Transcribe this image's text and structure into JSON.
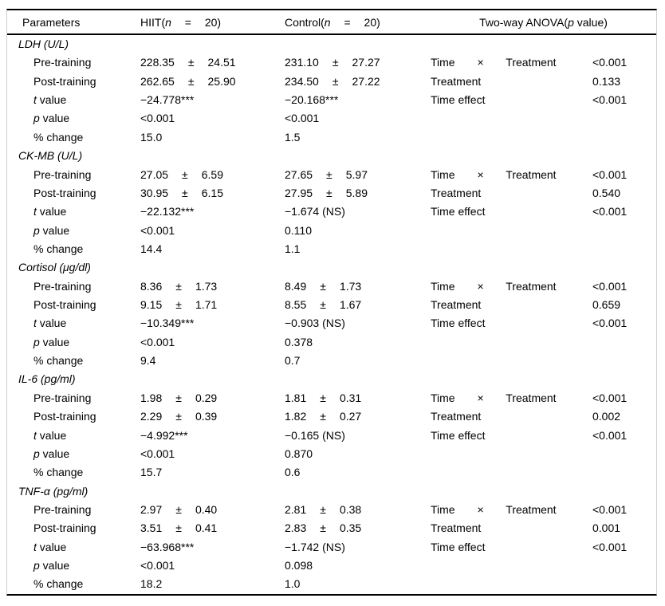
{
  "header": {
    "parameters": "Parameters",
    "hiit_prefix": "HIIT(",
    "hiit_n": "n",
    "hiit_rest": " = 20)",
    "control_prefix": "Control(",
    "control_n": "n",
    "control_rest": " = 20)",
    "anova_prefix": "Two-way ANOVA(",
    "anova_p": "p",
    "anova_rest": " value)"
  },
  "sections": [
    {
      "title": "LDH (U/L)",
      "rows": [
        {
          "label_pre": "Pre-training",
          "label_it": "",
          "label_rest": "",
          "hiit_mean": "228.35",
          "hiit_pm": "±",
          "hiit_sd": "24.51",
          "ctrl_mean": "231.10",
          "ctrl_pm": "±",
          "ctrl_sd": "27.27",
          "anova_label": "Time × Treatment",
          "anova_value": "<0.001"
        },
        {
          "label_pre": "Post-training",
          "label_it": "",
          "label_rest": "",
          "hiit_mean": "262.65",
          "hiit_pm": "±",
          "hiit_sd": "25.90",
          "ctrl_mean": "234.50",
          "ctrl_pm": "±",
          "ctrl_sd": "27.22",
          "anova_label": "Treatment",
          "anova_value": "0.133"
        },
        {
          "label_pre": "",
          "label_it": "t",
          "label_rest": " value",
          "hiit_mean": "−24.778***",
          "hiit_pm": "",
          "hiit_sd": "",
          "ctrl_mean": "−20.168***",
          "ctrl_pm": "",
          "ctrl_sd": "",
          "anova_label": "Time effect",
          "anova_value": "<0.001"
        },
        {
          "label_pre": "",
          "label_it": "p",
          "label_rest": " value",
          "hiit_mean": "<0.001",
          "hiit_pm": "",
          "hiit_sd": "",
          "ctrl_mean": "<0.001",
          "ctrl_pm": "",
          "ctrl_sd": "",
          "anova_label": "",
          "anova_value": ""
        },
        {
          "label_pre": "% change",
          "label_it": "",
          "label_rest": "",
          "hiit_mean": "15.0",
          "hiit_pm": "",
          "hiit_sd": "",
          "ctrl_mean": "1.5",
          "ctrl_pm": "",
          "ctrl_sd": "",
          "anova_label": "",
          "anova_value": ""
        }
      ]
    },
    {
      "title": "CK-MB (U/L)",
      "rows": [
        {
          "label_pre": "Pre-training",
          "label_it": "",
          "label_rest": "",
          "hiit_mean": "27.05",
          "hiit_pm": "±",
          "hiit_sd": "6.59",
          "ctrl_mean": "27.65",
          "ctrl_pm": "±",
          "ctrl_sd": "5.97",
          "anova_label": "Time × Treatment",
          "anova_value": "<0.001"
        },
        {
          "label_pre": "Post-training",
          "label_it": "",
          "label_rest": "",
          "hiit_mean": "30.95",
          "hiit_pm": "±",
          "hiit_sd": "6.15",
          "ctrl_mean": "27.95",
          "ctrl_pm": "±",
          "ctrl_sd": "5.89",
          "anova_label": "Treatment",
          "anova_value": "0.540"
        },
        {
          "label_pre": "",
          "label_it": "t",
          "label_rest": " value",
          "hiit_mean": "−22.132***",
          "hiit_pm": "",
          "hiit_sd": "",
          "ctrl_mean": "−1.674 (NS)",
          "ctrl_pm": "",
          "ctrl_sd": "",
          "anova_label": "Time effect",
          "anova_value": "<0.001"
        },
        {
          "label_pre": "",
          "label_it": "p",
          "label_rest": " value",
          "hiit_mean": "<0.001",
          "hiit_pm": "",
          "hiit_sd": "",
          "ctrl_mean": "0.110",
          "ctrl_pm": "",
          "ctrl_sd": "",
          "anova_label": "",
          "anova_value": ""
        },
        {
          "label_pre": "% change",
          "label_it": "",
          "label_rest": "",
          "hiit_mean": "14.4",
          "hiit_pm": "",
          "hiit_sd": "",
          "ctrl_mean": "1.1",
          "ctrl_pm": "",
          "ctrl_sd": "",
          "anova_label": "",
          "anova_value": ""
        }
      ]
    },
    {
      "title": "Cortisol (μg/dl)",
      "rows": [
        {
          "label_pre": "Pre-training",
          "label_it": "",
          "label_rest": "",
          "hiit_mean": "8.36",
          "hiit_pm": "±",
          "hiit_sd": "1.73",
          "ctrl_mean": "8.49",
          "ctrl_pm": "±",
          "ctrl_sd": "1.73",
          "anova_label": "Time × Treatment",
          "anova_value": "<0.001"
        },
        {
          "label_pre": "Post-training",
          "label_it": "",
          "label_rest": "",
          "hiit_mean": "9.15",
          "hiit_pm": "±",
          "hiit_sd": "1.71",
          "ctrl_mean": "8.55",
          "ctrl_pm": "±",
          "ctrl_sd": "1.67",
          "anova_label": "Treatment",
          "anova_value": "0.659"
        },
        {
          "label_pre": "",
          "label_it": "t",
          "label_rest": " value",
          "hiit_mean": "−10.349***",
          "hiit_pm": "",
          "hiit_sd": "",
          "ctrl_mean": "−0.903 (NS)",
          "ctrl_pm": "",
          "ctrl_sd": "",
          "anova_label": "Time effect",
          "anova_value": "<0.001"
        },
        {
          "label_pre": "",
          "label_it": "p",
          "label_rest": " value",
          "hiit_mean": "<0.001",
          "hiit_pm": "",
          "hiit_sd": "",
          "ctrl_mean": "0.378",
          "ctrl_pm": "",
          "ctrl_sd": "",
          "anova_label": "",
          "anova_value": ""
        },
        {
          "label_pre": "% change",
          "label_it": "",
          "label_rest": "",
          "hiit_mean": "9.4",
          "hiit_pm": "",
          "hiit_sd": "",
          "ctrl_mean": "0.7",
          "ctrl_pm": "",
          "ctrl_sd": "",
          "anova_label": "",
          "anova_value": ""
        }
      ]
    },
    {
      "title": "IL-6 (pg/ml)",
      "rows": [
        {
          "label_pre": "Pre-training",
          "label_it": "",
          "label_rest": "",
          "hiit_mean": "1.98",
          "hiit_pm": "±",
          "hiit_sd": "0.29",
          "ctrl_mean": "1.81",
          "ctrl_pm": "±",
          "ctrl_sd": "0.31",
          "anova_label": "Time × Treatment",
          "anova_value": "<0.001"
        },
        {
          "label_pre": "Post-training",
          "label_it": "",
          "label_rest": "",
          "hiit_mean": "2.29",
          "hiit_pm": "±",
          "hiit_sd": "0.39",
          "ctrl_mean": "1.82",
          "ctrl_pm": "±",
          "ctrl_sd": "0.27",
          "anova_label": "Treatment",
          "anova_value": "0.002"
        },
        {
          "label_pre": "",
          "label_it": "t",
          "label_rest": " value",
          "hiit_mean": "−4.992***",
          "hiit_pm": "",
          "hiit_sd": "",
          "ctrl_mean": "−0.165 (NS)",
          "ctrl_pm": "",
          "ctrl_sd": "",
          "anova_label": "Time effect",
          "anova_value": "<0.001"
        },
        {
          "label_pre": "",
          "label_it": "p",
          "label_rest": " value",
          "hiit_mean": "<0.001",
          "hiit_pm": "",
          "hiit_sd": "",
          "ctrl_mean": "0.870",
          "ctrl_pm": "",
          "ctrl_sd": "",
          "anova_label": "",
          "anova_value": ""
        },
        {
          "label_pre": "% change",
          "label_it": "",
          "label_rest": "",
          "hiit_mean": "15.7",
          "hiit_pm": "",
          "hiit_sd": "",
          "ctrl_mean": "0.6",
          "ctrl_pm": "",
          "ctrl_sd": "",
          "anova_label": "",
          "anova_value": ""
        }
      ]
    },
    {
      "title": "TNF-α (pg/ml)",
      "rows": [
        {
          "label_pre": "Pre-training",
          "label_it": "",
          "label_rest": "",
          "hiit_mean": "2.97",
          "hiit_pm": "±",
          "hiit_sd": "0.40",
          "ctrl_mean": "2.81",
          "ctrl_pm": "±",
          "ctrl_sd": "0.38",
          "anova_label": "Time × Treatment",
          "anova_value": "<0.001"
        },
        {
          "label_pre": "Post-training",
          "label_it": "",
          "label_rest": "",
          "hiit_mean": "3.51",
          "hiit_pm": "±",
          "hiit_sd": "0.41",
          "ctrl_mean": "2.83",
          "ctrl_pm": "±",
          "ctrl_sd": "0.35",
          "anova_label": "Treatment",
          "anova_value": "0.001"
        },
        {
          "label_pre": "",
          "label_it": "t",
          "label_rest": " value",
          "hiit_mean": "−63.968***",
          "hiit_pm": "",
          "hiit_sd": "",
          "ctrl_mean": "−1.742 (NS)",
          "ctrl_pm": "",
          "ctrl_sd": "",
          "anova_label": "Time effect",
          "anova_value": "<0.001"
        },
        {
          "label_pre": "",
          "label_it": "p",
          "label_rest": " value",
          "hiit_mean": "<0.001",
          "hiit_pm": "",
          "hiit_sd": "",
          "ctrl_mean": "0.098",
          "ctrl_pm": "",
          "ctrl_sd": "",
          "anova_label": "",
          "anova_value": ""
        },
        {
          "label_pre": "% change",
          "label_it": "",
          "label_rest": "",
          "hiit_mean": "18.2",
          "hiit_pm": "",
          "hiit_sd": "",
          "ctrl_mean": "1.0",
          "ctrl_pm": "",
          "ctrl_sd": "",
          "anova_label": "",
          "anova_value": ""
        }
      ]
    }
  ]
}
